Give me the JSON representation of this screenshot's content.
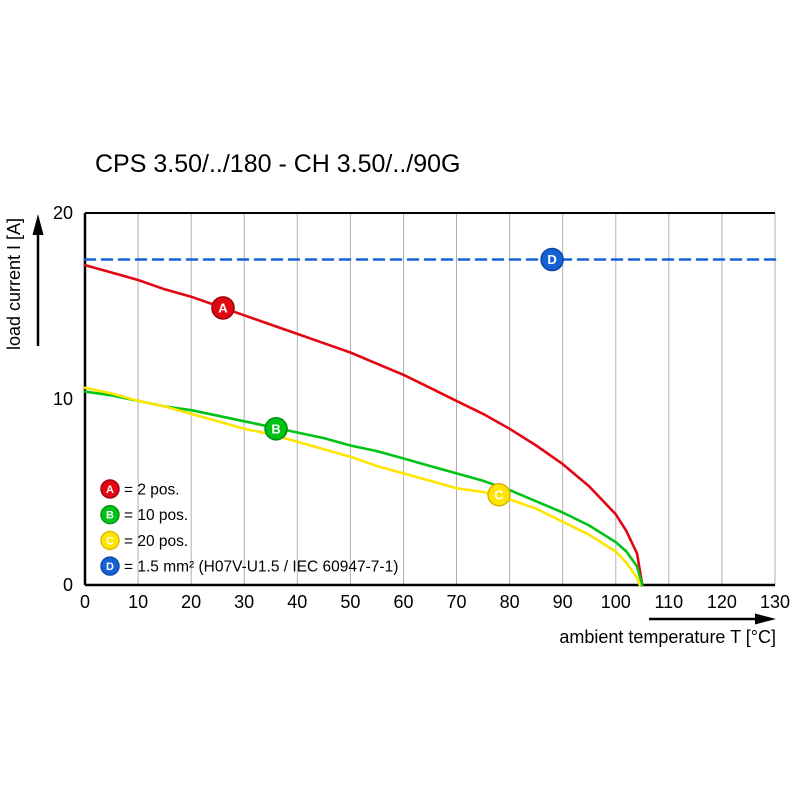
{
  "page": {
    "background": "#ffffff"
  },
  "chart_data": {
    "type": "line",
    "title": "CPS 3.50/../180 - CH 3.50/../90G",
    "xlabel": "ambient temperature T [°C]",
    "ylabel": "load current I [A]",
    "xlim": [
      0,
      130
    ],
    "ylim": [
      0,
      20
    ],
    "x_ticks": [
      0,
      10,
      20,
      30,
      40,
      50,
      60,
      70,
      80,
      90,
      100,
      110,
      120,
      130
    ],
    "y_ticks": [
      0,
      10,
      20
    ],
    "grid": "vertical",
    "grid_color": "#b0b0b0",
    "axis_color": "#000000",
    "legend_position": "inside-bottom-left",
    "series": [
      {
        "key": "A",
        "label": "2 pos.",
        "legend_text": "= 2 pos.",
        "color": "#e30613",
        "marker_stroke": "#9e040d",
        "style": "solid",
        "marker_at": [
          26,
          14.9
        ],
        "points": [
          [
            0,
            17.2
          ],
          [
            5,
            16.8
          ],
          [
            10,
            16.4
          ],
          [
            15,
            15.9
          ],
          [
            20,
            15.5
          ],
          [
            25,
            15.0
          ],
          [
            30,
            14.5
          ],
          [
            35,
            14.0
          ],
          [
            40,
            13.5
          ],
          [
            45,
            13.0
          ],
          [
            50,
            12.5
          ],
          [
            55,
            11.9
          ],
          [
            60,
            11.3
          ],
          [
            65,
            10.6
          ],
          [
            70,
            9.9
          ],
          [
            75,
            9.2
          ],
          [
            80,
            8.4
          ],
          [
            85,
            7.5
          ],
          [
            90,
            6.5
          ],
          [
            95,
            5.3
          ],
          [
            100,
            3.8
          ],
          [
            102,
            2.9
          ],
          [
            104,
            1.7
          ],
          [
            105,
            0
          ]
        ]
      },
      {
        "key": "B",
        "label": "10 pos.",
        "legend_text": "= 10 pos.",
        "color": "#00c217",
        "marker_stroke": "#00930f",
        "style": "solid",
        "marker_at": [
          36,
          8.4
        ],
        "points": [
          [
            0,
            10.4
          ],
          [
            5,
            10.2
          ],
          [
            10,
            9.9
          ],
          [
            15,
            9.6
          ],
          [
            20,
            9.4
          ],
          [
            25,
            9.1
          ],
          [
            30,
            8.8
          ],
          [
            35,
            8.5
          ],
          [
            40,
            8.2
          ],
          [
            45,
            7.9
          ],
          [
            50,
            7.5
          ],
          [
            55,
            7.2
          ],
          [
            60,
            6.8
          ],
          [
            65,
            6.4
          ],
          [
            70,
            6.0
          ],
          [
            75,
            5.6
          ],
          [
            80,
            5.1
          ],
          [
            85,
            4.5
          ],
          [
            90,
            3.9
          ],
          [
            95,
            3.2
          ],
          [
            100,
            2.3
          ],
          [
            102,
            1.8
          ],
          [
            104,
            1.0
          ],
          [
            105,
            0
          ]
        ]
      },
      {
        "key": "C",
        "label": "20 pos.",
        "legend_text": "= 20 pos.",
        "color": "#ffe500",
        "marker_stroke": "#d9b900",
        "style": "solid",
        "marker_at": [
          78,
          4.85
        ],
        "points": [
          [
            0,
            10.6
          ],
          [
            5,
            10.3
          ],
          [
            10,
            9.9
          ],
          [
            15,
            9.6
          ],
          [
            20,
            9.2
          ],
          [
            25,
            8.8
          ],
          [
            30,
            8.4
          ],
          [
            35,
            8.1
          ],
          [
            40,
            7.7
          ],
          [
            45,
            7.3
          ],
          [
            50,
            6.9
          ],
          [
            55,
            6.4
          ],
          [
            60,
            6.0
          ],
          [
            65,
            5.6
          ],
          [
            70,
            5.2
          ],
          [
            75,
            5.0
          ],
          [
            80,
            4.6
          ],
          [
            85,
            4.1
          ],
          [
            90,
            3.4
          ],
          [
            95,
            2.7
          ],
          [
            100,
            1.8
          ],
          [
            102,
            1.2
          ],
          [
            104,
            0.4
          ],
          [
            104.5,
            0
          ]
        ]
      },
      {
        "key": "D",
        "label": "1.5 mm² (H07V-U1.5 / IEC 60947-7-1)",
        "legend_text": "= 1.5 mm² (H07V-U1.5 / IEC 60947-7-1)",
        "color": "#1562d8",
        "marker_stroke": "#0e47a3",
        "style": "dashed",
        "marker_at": [
          88,
          17.5
        ],
        "points": [
          [
            0,
            17.5
          ],
          [
            130,
            17.5
          ]
        ]
      }
    ]
  }
}
